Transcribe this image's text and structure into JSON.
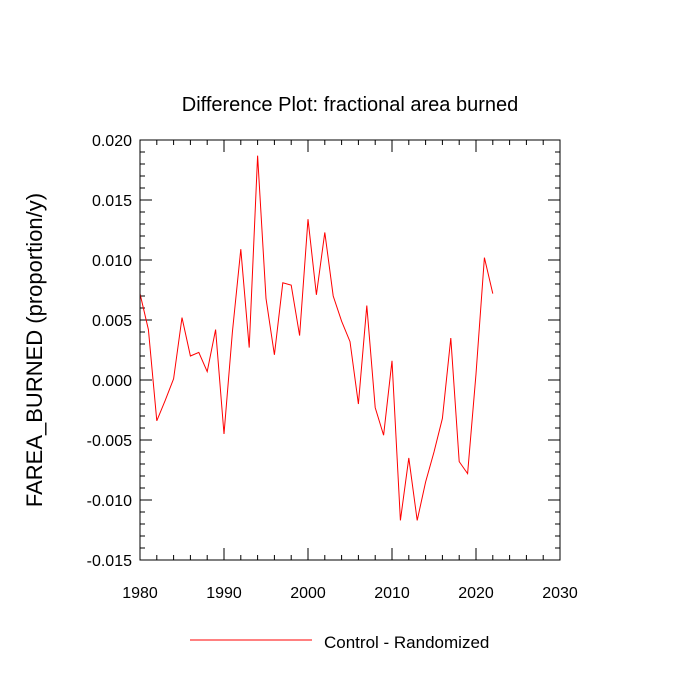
{
  "chart_data": {
    "type": "line",
    "title": "Difference Plot: fractional area burned",
    "xlabel": "",
    "ylabel": "FAREA_BURNED  (proportion/y)",
    "xlim": [
      1980,
      2030
    ],
    "ylim": [
      -0.015,
      0.02
    ],
    "x_ticks": [
      1980,
      1990,
      2000,
      2010,
      2020,
      2030
    ],
    "x_tick_labels": [
      "1980",
      "1990",
      "2000",
      "2010",
      "2020",
      "2030"
    ],
    "y_ticks": [
      -0.015,
      -0.01,
      -0.005,
      0.0,
      0.005,
      0.01,
      0.015,
      0.02
    ],
    "y_tick_labels": [
      "-0.015",
      "-0.010",
      "-0.005",
      "0.000",
      "0.005",
      "0.010",
      "0.015",
      "0.020"
    ],
    "grid": false,
    "legend_position": "bottom-center",
    "x": [
      1980,
      1981,
      1982,
      1983,
      1984,
      1985,
      1986,
      1987,
      1988,
      1989,
      1990,
      1991,
      1992,
      1993,
      1994,
      1995,
      1996,
      1997,
      1998,
      1999,
      2000,
      2001,
      2002,
      2003,
      2004,
      2005,
      2006,
      2007,
      2008,
      2009,
      2010,
      2011,
      2012,
      2013,
      2014,
      2015,
      2016,
      2017,
      2018,
      2019,
      2020,
      2021,
      2022
    ],
    "series": [
      {
        "name": "Control - Randomized",
        "color": "#ff0000",
        "values": [
          0.0072,
          0.0042,
          -0.0034,
          -0.0017,
          0.0001,
          0.0052,
          0.002,
          0.0023,
          0.0007,
          0.0042,
          -0.0045,
          0.004,
          0.0109,
          0.0027,
          0.0187,
          0.0068,
          0.0021,
          0.0081,
          0.0079,
          0.0037,
          0.0134,
          0.0071,
          0.0123,
          0.007,
          0.0049,
          0.0032,
          -0.002,
          0.0062,
          -0.0023,
          -0.0046,
          0.0016,
          -0.0117,
          -0.0065,
          -0.0117,
          -0.0085,
          -0.006,
          -0.0032,
          0.0035,
          -0.0068,
          -0.0078,
          0.0005,
          0.0102,
          0.0072
        ]
      }
    ]
  }
}
